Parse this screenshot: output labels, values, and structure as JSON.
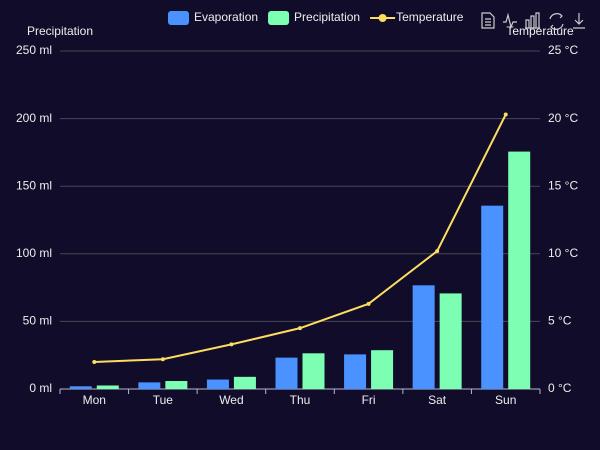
{
  "chart_data": {
    "type": "bar-line",
    "categories": [
      "Mon",
      "Tue",
      "Wed",
      "Thu",
      "Fri",
      "Sat",
      "Sun"
    ],
    "series": [
      {
        "name": "Evaporation",
        "type": "bar",
        "color": "#4992ff",
        "values": [
          2.0,
          4.9,
          7.0,
          23.2,
          25.6,
          76.7,
          135.6
        ]
      },
      {
        "name": "Precipitation",
        "type": "bar",
        "color": "#7cffb2",
        "values": [
          2.6,
          5.9,
          9.0,
          26.4,
          28.7,
          70.7,
          175.6
        ]
      },
      {
        "name": "Temperature",
        "type": "line",
        "axis": "y2",
        "color": "#fddd60",
        "values": [
          2.0,
          2.2,
          3.3,
          4.5,
          6.3,
          10.2,
          20.3
        ]
      }
    ],
    "y_label": "Precipitation",
    "y2_label": "Temperature",
    "ylim": [
      0,
      250
    ],
    "yticks": [
      {
        "value": 0,
        "label": "0 ml"
      },
      {
        "value": 50,
        "label": "50 ml"
      },
      {
        "value": 100,
        "label": "100 ml"
      },
      {
        "value": 150,
        "label": "150 ml"
      },
      {
        "value": 200,
        "label": "200 ml"
      },
      {
        "value": 250,
        "label": "250 ml"
      }
    ],
    "y2lim": [
      0,
      25
    ],
    "y2ticks": [
      {
        "value": 0,
        "label": "0 °C"
      },
      {
        "value": 5,
        "label": "5 °C"
      },
      {
        "value": 10,
        "label": "10 °C"
      },
      {
        "value": 15,
        "label": "15 °C"
      },
      {
        "value": 20,
        "label": "20 °C"
      },
      {
        "value": 25,
        "label": "25 °C"
      }
    ],
    "grid": true,
    "legend": "top"
  }
}
